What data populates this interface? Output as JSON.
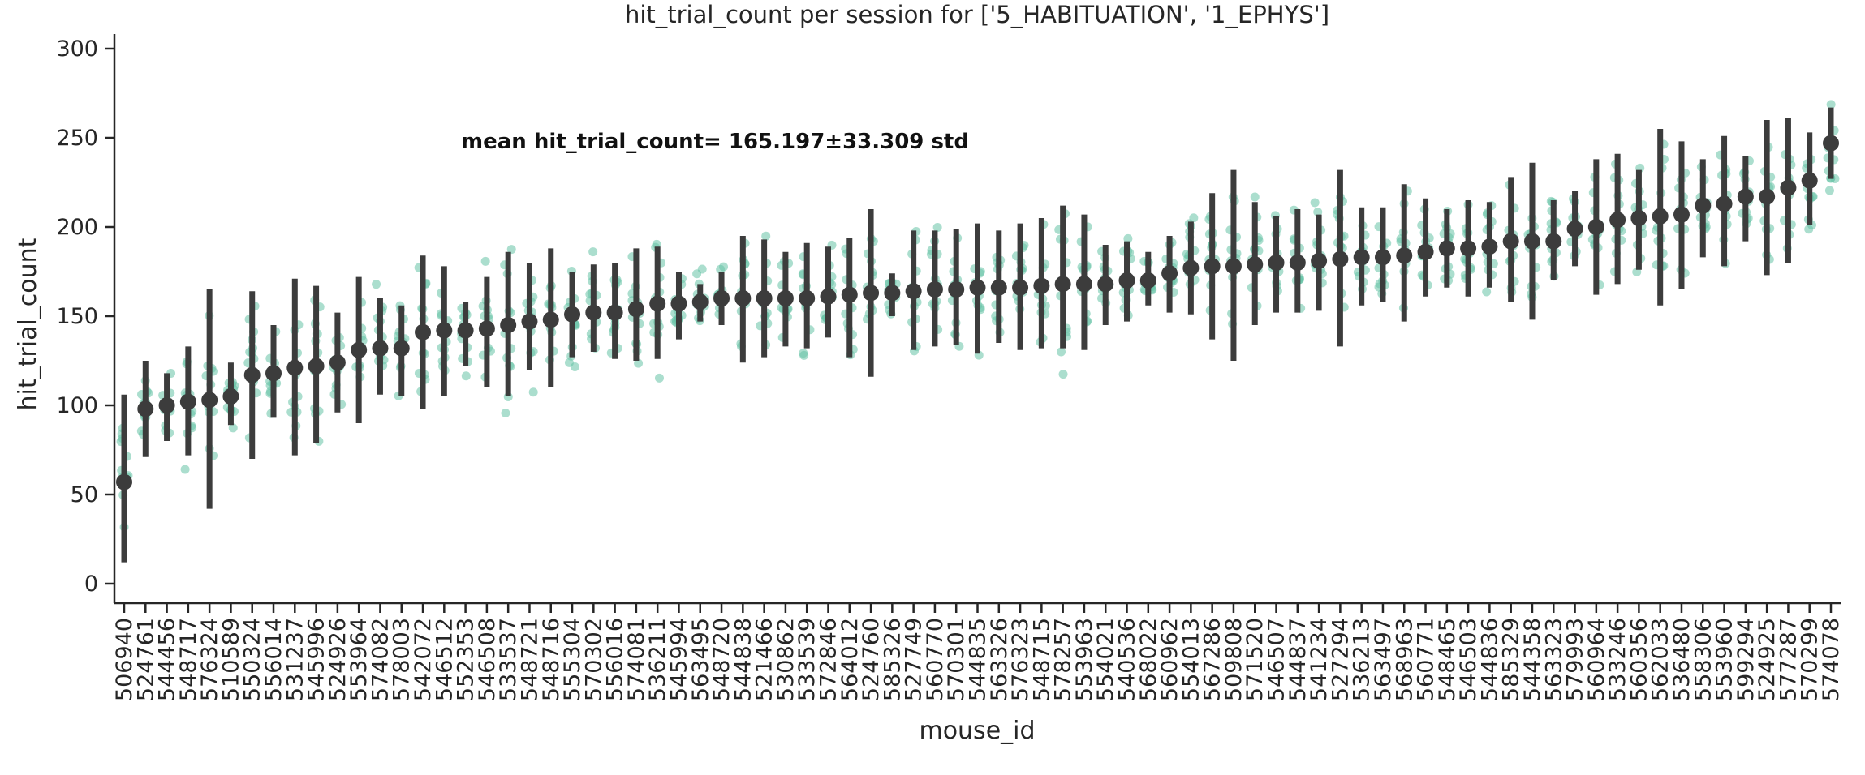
{
  "chart_data": {
    "type": "pointplot",
    "title": "hit_trial_count per session for ['5_HABITUATION', '1_EPHYS']",
    "xlabel": "mouse_id",
    "ylabel": "hit_trial_count",
    "ylim": [
      -12,
      310
    ],
    "yticks": [
      0,
      50,
      100,
      150,
      200,
      250,
      300
    ],
    "annotation": "mean hit_trial_count= 165.197±33.309 std",
    "point_color": "#3c3c3c",
    "scatter_color": "#66c2a5",
    "categories": [
      "506940",
      "524761",
      "544456",
      "548717",
      "576324",
      "510589",
      "550324",
      "556014",
      "531237",
      "545996",
      "524926",
      "553964",
      "574082",
      "578003",
      "542072",
      "546512",
      "552353",
      "546508",
      "533537",
      "548721",
      "548716",
      "555304",
      "570302",
      "556016",
      "574081",
      "536211",
      "545994",
      "563495",
      "548720",
      "544838",
      "521466",
      "530862",
      "533539",
      "572846",
      "564012",
      "524760",
      "585326",
      "527749",
      "560770",
      "570301",
      "544835",
      "563326",
      "576323",
      "548715",
      "578257",
      "553963",
      "554021",
      "540536",
      "568022",
      "560962",
      "554013",
      "567286",
      "509808",
      "571520",
      "546507",
      "544837",
      "541234",
      "527294",
      "536213",
      "563497",
      "568963",
      "560771",
      "548465",
      "546503",
      "544836",
      "585329",
      "544358",
      "563323",
      "579993",
      "560964",
      "533246",
      "560356",
      "562033",
      "536480",
      "558306",
      "553960",
      "599294",
      "524925",
      "577287",
      "570299",
      "574078"
    ],
    "means": [
      57,
      98,
      100,
      102,
      103,
      105,
      117,
      118,
      121,
      122,
      124,
      131,
      132,
      132,
      141,
      142,
      142,
      143,
      145,
      147,
      148,
      151,
      152,
      152,
      154,
      157,
      157,
      158,
      160,
      160,
      160,
      160,
      160,
      161,
      162,
      163,
      163,
      164,
      165,
      165,
      166,
      166,
      166,
      167,
      168,
      168,
      168,
      170,
      170,
      174,
      177,
      178,
      178,
      179,
      180,
      180,
      181,
      182,
      183,
      183,
      184,
      186,
      188,
      188,
      189,
      192,
      192,
      192,
      199,
      200,
      204,
      205,
      206,
      207,
      212,
      213,
      217,
      217,
      222,
      226,
      247
    ],
    "ci_low": [
      12,
      71,
      80,
      72,
      42,
      89,
      70,
      93,
      72,
      79,
      96,
      90,
      106,
      105,
      98,
      105,
      122,
      110,
      105,
      120,
      110,
      127,
      130,
      126,
      125,
      126,
      137,
      147,
      145,
      124,
      127,
      133,
      132,
      138,
      127,
      116,
      150,
      131,
      133,
      134,
      129,
      135,
      131,
      132,
      132,
      131,
      145,
      147,
      156,
      152,
      151,
      137,
      125,
      145,
      152,
      152,
      153,
      133,
      156,
      158,
      147,
      161,
      166,
      161,
      166,
      158,
      148,
      170,
      178,
      162,
      168,
      176,
      156,
      165,
      183,
      178,
      192,
      173,
      180,
      201,
      227
    ],
    "ci_high": [
      106,
      125,
      118,
      133,
      165,
      124,
      164,
      145,
      171,
      167,
      152,
      172,
      160,
      156,
      184,
      178,
      158,
      172,
      186,
      180,
      188,
      175,
      179,
      180,
      188,
      189,
      175,
      168,
      175,
      195,
      193,
      186,
      191,
      189,
      194,
      210,
      174,
      198,
      198,
      199,
      202,
      198,
      202,
      205,
      212,
      207,
      190,
      192,
      186,
      195,
      203,
      219,
      232,
      214,
      206,
      210,
      207,
      232,
      211,
      211,
      224,
      216,
      210,
      215,
      214,
      228,
      236,
      215,
      220,
      238,
      241,
      232,
      255,
      248,
      238,
      251,
      240,
      260,
      261,
      253,
      267
    ],
    "spreads": [
      45,
      32,
      25,
      38,
      55,
      20,
      45,
      30,
      50,
      48,
      28,
      40,
      30,
      28,
      50,
      42,
      22,
      38,
      48,
      40,
      45,
      32,
      30,
      32,
      40,
      38,
      22,
      18,
      22,
      42,
      40,
      32,
      35,
      32,
      38,
      48,
      20,
      42,
      40,
      40,
      42,
      38,
      42,
      40,
      48,
      45,
      25,
      25,
      20,
      25,
      30,
      45,
      52,
      38,
      30,
      32,
      30,
      50,
      30,
      30,
      40,
      32,
      25,
      30,
      30,
      40,
      45,
      25,
      25,
      40,
      40,
      32,
      52,
      42,
      32,
      42,
      28,
      45,
      45,
      30,
      25
    ]
  }
}
